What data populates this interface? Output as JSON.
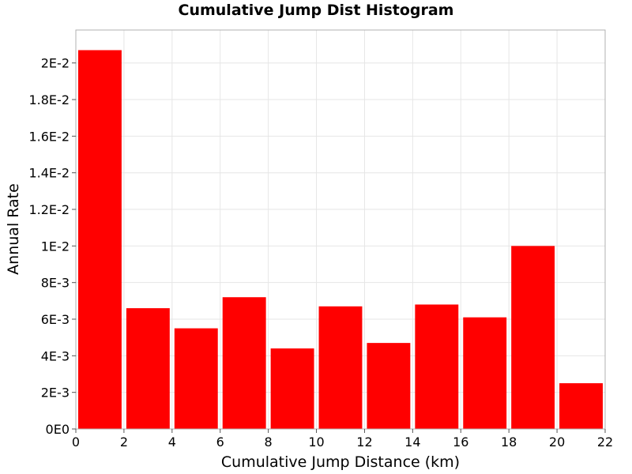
{
  "chart_data": {
    "type": "bar",
    "title": "Cumulative Jump Dist Histogram",
    "xlabel": "Cumulative Jump Distance (km)",
    "ylabel": "Annual Rate",
    "xlim": [
      0,
      22
    ],
    "ylim": [
      0,
      0.0218
    ],
    "x_ticks": [
      {
        "value": 0,
        "label": "0"
      },
      {
        "value": 2,
        "label": "2"
      },
      {
        "value": 4,
        "label": "4"
      },
      {
        "value": 6,
        "label": "6"
      },
      {
        "value": 8,
        "label": "8"
      },
      {
        "value": 10,
        "label": "10"
      },
      {
        "value": 12,
        "label": "12"
      },
      {
        "value": 14,
        "label": "14"
      },
      {
        "value": 16,
        "label": "16"
      },
      {
        "value": 18,
        "label": "18"
      },
      {
        "value": 20,
        "label": "20"
      },
      {
        "value": 22,
        "label": "22"
      }
    ],
    "y_ticks": [
      {
        "value": 0,
        "label": "0E0"
      },
      {
        "value": 0.002,
        "label": "2E-3"
      },
      {
        "value": 0.004,
        "label": "4E-3"
      },
      {
        "value": 0.006,
        "label": "6E-3"
      },
      {
        "value": 0.008,
        "label": "8E-3"
      },
      {
        "value": 0.01,
        "label": "1E-2"
      },
      {
        "value": 0.012,
        "label": "1.2E-2"
      },
      {
        "value": 0.014,
        "label": "1.4E-2"
      },
      {
        "value": 0.016,
        "label": "1.6E-2"
      },
      {
        "value": 0.018,
        "label": "1.8E-2"
      },
      {
        "value": 0.02,
        "label": "2E-2"
      }
    ],
    "bars": [
      {
        "x_start": 0,
        "x_end": 2,
        "value": 0.0207
      },
      {
        "x_start": 2,
        "x_end": 4,
        "value": 0.0066
      },
      {
        "x_start": 4,
        "x_end": 6,
        "value": 0.0055
      },
      {
        "x_start": 6,
        "x_end": 8,
        "value": 0.0072
      },
      {
        "x_start": 8,
        "x_end": 10,
        "value": 0.0044
      },
      {
        "x_start": 10,
        "x_end": 12,
        "value": 0.0067
      },
      {
        "x_start": 12,
        "x_end": 14,
        "value": 0.0047
      },
      {
        "x_start": 14,
        "x_end": 16,
        "value": 0.0068
      },
      {
        "x_start": 16,
        "x_end": 18,
        "value": 0.0061
      },
      {
        "x_start": 18,
        "x_end": 20,
        "value": 0.01
      },
      {
        "x_start": 20,
        "x_end": 22,
        "value": 0.0025
      }
    ],
    "bar_color": "#ff0000",
    "grid": true,
    "grid_color": "#e6e6e6"
  }
}
